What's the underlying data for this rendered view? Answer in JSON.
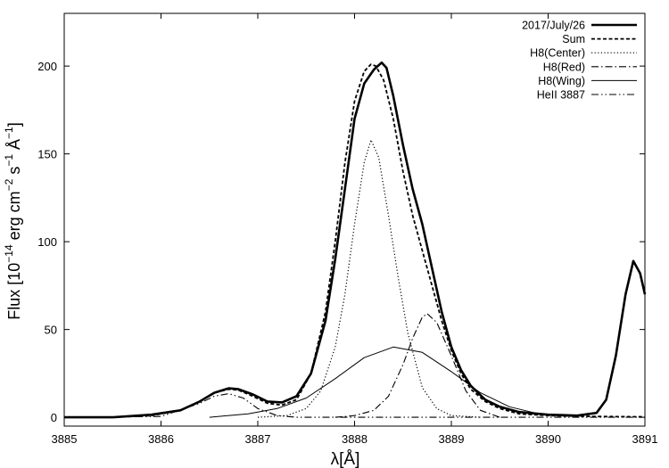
{
  "chart_data": {
    "type": "line",
    "title": "",
    "xlabel": "λ[Å]",
    "ylabel": {
      "prefix": "Flux [10",
      "exp1": "−14",
      "mid1": " erg cm",
      "exp2": "−2",
      "mid2": " s",
      "exp3": "−1",
      "mid3": " Å",
      "exp4": "−1",
      "suffix": "]"
    },
    "xlim": [
      3885,
      3891
    ],
    "ylim": [
      -5,
      230
    ],
    "xticks": [
      3885,
      3886,
      3887,
      3888,
      3889,
      3890,
      3891
    ],
    "yticks": [
      0,
      50,
      100,
      150,
      200
    ],
    "legend_position": "top-right",
    "series": [
      {
        "name": "2017/July/26",
        "style": "thick-solid",
        "x": [
          3885.0,
          3885.5,
          3885.9,
          3886.2,
          3886.4,
          3886.55,
          3886.7,
          3886.8,
          3886.95,
          3887.1,
          3887.25,
          3887.4,
          3887.55,
          3887.7,
          3887.8,
          3887.9,
          3888.0,
          3888.1,
          3888.2,
          3888.28,
          3888.33,
          3888.4,
          3888.5,
          3888.6,
          3888.7,
          3888.8,
          3888.9,
          3889.0,
          3889.1,
          3889.2,
          3889.35,
          3889.5,
          3889.7,
          3890.0,
          3890.3,
          3890.5,
          3890.6,
          3890.7,
          3890.8,
          3890.88,
          3890.95,
          3891.0
        ],
        "y": [
          0,
          0,
          1.5,
          4,
          9,
          14,
          16.5,
          16,
          13,
          9,
          8.5,
          12,
          25,
          55,
          90,
          130,
          170,
          190,
          198,
          202,
          199,
          183,
          155,
          130,
          110,
          85,
          60,
          40,
          27,
          18,
          10,
          6,
          3,
          1.5,
          1,
          2.5,
          10,
          35,
          70,
          89,
          82,
          70
        ]
      },
      {
        "name": "Sum",
        "style": "dashed",
        "x": [
          3885.0,
          3885.5,
          3885.9,
          3886.2,
          3886.4,
          3886.55,
          3886.7,
          3886.8,
          3886.95,
          3887.1,
          3887.25,
          3887.4,
          3887.55,
          3887.7,
          3887.8,
          3887.9,
          3888.0,
          3888.1,
          3888.17,
          3888.22,
          3888.3,
          3888.4,
          3888.5,
          3888.6,
          3888.7,
          3888.8,
          3888.9,
          3889.0,
          3889.1,
          3889.2,
          3889.35,
          3889.5,
          3889.7,
          3890.0,
          3890.5,
          3891.0
        ],
        "y": [
          0,
          0,
          1,
          4,
          9,
          14,
          16,
          15.5,
          12,
          8,
          7,
          10,
          25,
          60,
          100,
          145,
          180,
          197,
          201,
          200,
          192,
          170,
          140,
          115,
          95,
          75,
          55,
          38,
          25,
          16,
          9,
          5,
          2,
          1,
          0.5,
          0.3
        ]
      },
      {
        "name": "H8(Center)",
        "style": "dotted",
        "x": [
          3887.0,
          3887.3,
          3887.5,
          3887.65,
          3887.8,
          3887.9,
          3888.0,
          3888.1,
          3888.17,
          3888.25,
          3888.35,
          3888.45,
          3888.55,
          3888.7,
          3888.85,
          3889.0,
          3889.3
        ],
        "y": [
          0,
          1,
          5,
          15,
          40,
          70,
          110,
          145,
          158,
          148,
          115,
          80,
          48,
          17,
          5,
          1,
          0
        ]
      },
      {
        "name": "H8(Red)",
        "style": "dash-dot",
        "x": [
          3887.8,
          3888.0,
          3888.2,
          3888.35,
          3888.5,
          3888.6,
          3888.7,
          3888.75,
          3888.85,
          3889.0,
          3889.15,
          3889.3,
          3889.5
        ],
        "y": [
          0,
          1,
          4,
          12,
          30,
          45,
          57,
          59,
          54,
          35,
          15,
          4,
          0
        ]
      },
      {
        "name": "H8(Wing)",
        "style": "thin-solid",
        "x": [
          3886.5,
          3886.9,
          3887.2,
          3887.5,
          3887.8,
          3888.1,
          3888.4,
          3888.7,
          3889.0,
          3889.3,
          3889.6,
          3889.9,
          3890.2
        ],
        "y": [
          0,
          2,
          5,
          11,
          22,
          34,
          40,
          37,
          26,
          14,
          6,
          2,
          0.5
        ]
      },
      {
        "name": "HeII 3887",
        "style": "dash-dot-dot",
        "x": [
          3885.0,
          3886.0,
          3886.4,
          3886.55,
          3886.7,
          3886.85,
          3887.0,
          3887.2,
          3887.4,
          3888.0,
          3889.0,
          3890.0,
          3891.0
        ],
        "y": [
          0,
          0.5,
          8,
          12,
          13.5,
          11,
          5,
          1,
          0,
          0,
          0,
          0,
          0
        ]
      }
    ]
  }
}
